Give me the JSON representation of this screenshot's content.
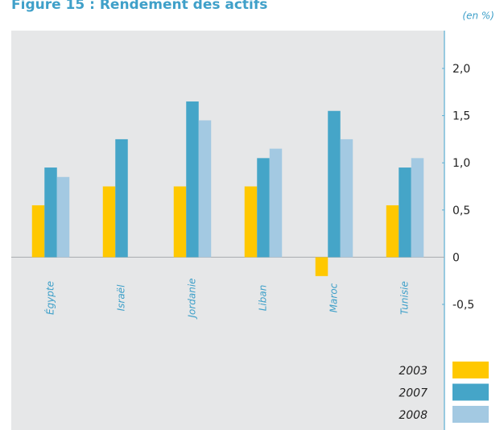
{
  "chart_data": {
    "type": "bar",
    "title": "Figure 15 : Rendement des actifs",
    "unit_label": "(en %)",
    "categories": [
      "Égypte",
      "Israël",
      "Jordanie",
      "Liban",
      "Maroc",
      "Tunisie"
    ],
    "series": [
      {
        "name": "2003",
        "color": "#ffc800",
        "values": [
          0.55,
          0.75,
          0.75,
          0.75,
          -0.2,
          0.55
        ]
      },
      {
        "name": "2007",
        "color": "#45a5c8",
        "values": [
          0.95,
          1.25,
          1.65,
          1.05,
          1.55,
          0.95
        ]
      },
      {
        "name": "2008",
        "color": "#a3c9e2",
        "values": [
          0.85,
          null,
          1.45,
          1.15,
          1.25,
          1.05
        ]
      }
    ],
    "ylim": [
      -0.5,
      2.0
    ],
    "yticks": [
      {
        "value": 2.0,
        "label": "2,0"
      },
      {
        "value": 1.5,
        "label": "1,5"
      },
      {
        "value": 1.0,
        "label": "1,0"
      },
      {
        "value": 0.5,
        "label": "0,5"
      },
      0,
      {
        "value": -0.5,
        "label": "-0,5"
      }
    ],
    "legend": "bottom-right"
  }
}
